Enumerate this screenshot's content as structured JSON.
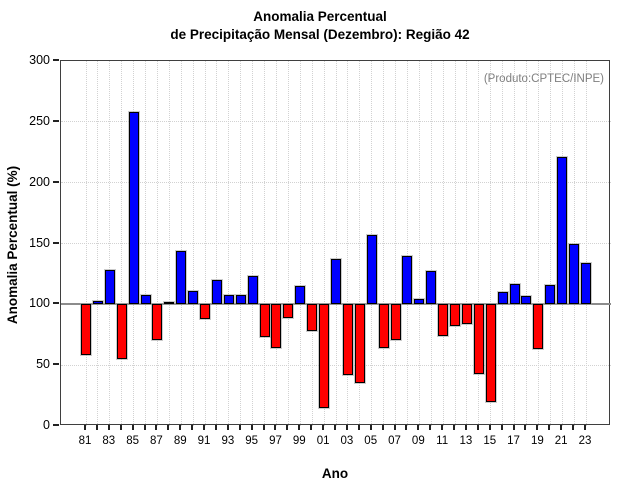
{
  "title": {
    "line1": "Anomalia Percentual",
    "line2": "de Precipitação Mensal (Dezembro): Região 42"
  },
  "annotation": "(Produto:CPTEC/INPE)",
  "chart_data": {
    "type": "bar",
    "title": "Anomalia Percentual de Precipitação Mensal (Dezembro): Região 42",
    "xlabel": "Ano",
    "ylabel": "Anomalia Percentual (%)",
    "ylim": [
      0,
      300
    ],
    "yticks": [
      0,
      50,
      100,
      150,
      200,
      250,
      300
    ],
    "baseline": 100,
    "grid": "dotted horizontal every 50 and dotted vertical every year; solid gray line at baseline 100",
    "legend_position": "none",
    "colors": {
      "above_baseline": "#0000ff",
      "below_baseline": "#ff0000",
      "bar_border": "#000000",
      "baseline_line": "#8c8c8c",
      "annotation_text": "#7f7f7f"
    },
    "categories": [
      "81",
      "82",
      "83",
      "84",
      "85",
      "86",
      "87",
      "88",
      "89",
      "90",
      "91",
      "92",
      "93",
      "94",
      "95",
      "96",
      "97",
      "98",
      "99",
      "00",
      "01",
      "02",
      "03",
      "04",
      "05",
      "06",
      "07",
      "08",
      "09",
      "10",
      "11",
      "12",
      "13",
      "14",
      "15",
      "16",
      "17",
      "18",
      "19",
      "20",
      "21",
      "22",
      "23"
    ],
    "x_tick_labels": [
      "81",
      "83",
      "85",
      "87",
      "89",
      "91",
      "93",
      "95",
      "97",
      "99",
      "01",
      "03",
      "05",
      "07",
      "09",
      "11",
      "13",
      "15",
      "17",
      "19",
      "21",
      "23"
    ],
    "values": [
      58,
      103,
      128,
      55,
      258,
      108,
      71,
      102,
      144,
      111,
      88,
      120,
      108,
      108,
      123,
      73,
      64,
      89,
      115,
      78,
      15,
      137,
      42,
      35,
      157,
      64,
      71,
      140,
      104,
      127,
      74,
      82,
      84,
      43,
      20,
      110,
      117,
      107,
      63,
      116,
      221,
      150,
      134
    ]
  }
}
